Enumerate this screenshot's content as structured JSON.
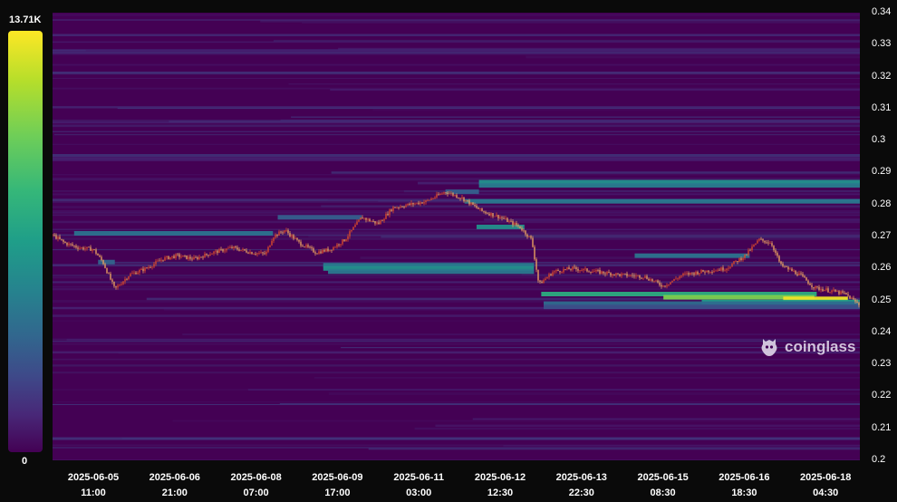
{
  "legend": {
    "max_label": "13.71K",
    "min_label": "0"
  },
  "watermark": {
    "text": "coinglass"
  },
  "chart_data": {
    "type": "heatmap",
    "colormap": [
      "#440154",
      "#482878",
      "#3e4989",
      "#31688e",
      "#26828e",
      "#1f9e89",
      "#35b779",
      "#6ece58",
      "#b5de2b",
      "#fde725"
    ],
    "value_range": [
      0,
      13710
    ],
    "ylim": [
      0.2,
      0.34
    ],
    "yticks": [
      "0.34",
      "0.33",
      "0.32",
      "0.31",
      "0.3",
      "0.29",
      "0.28",
      "0.27",
      "0.26",
      "0.25",
      "0.24",
      "0.23",
      "0.22",
      "0.21",
      "0.2"
    ],
    "xticks": [
      {
        "date": "2025-06-05",
        "time": "11:00"
      },
      {
        "date": "2025-06-06",
        "time": "21:00"
      },
      {
        "date": "2025-06-08",
        "time": "07:00"
      },
      {
        "date": "2025-06-09",
        "time": "17:00"
      },
      {
        "date": "2025-06-11",
        "time": "03:00"
      },
      {
        "date": "2025-06-12",
        "time": "12:30"
      },
      {
        "date": "2025-06-13",
        "time": "22:30"
      },
      {
        "date": "2025-06-15",
        "time": "08:30"
      },
      {
        "date": "2025-06-16",
        "time": "18:30"
      },
      {
        "date": "2025-06-18",
        "time": "04:30"
      }
    ],
    "xrange": [
      "2025-06-04T17:00",
      "2025-06-18T18:00"
    ],
    "price_series": [
      [
        "2025-06-04T17:00",
        0.2705
      ],
      [
        "2025-06-04T22:00",
        0.268
      ],
      [
        "2025-06-05T04:00",
        0.2665
      ],
      [
        "2025-06-05T10:00",
        0.266
      ],
      [
        "2025-06-05T14:00",
        0.262
      ],
      [
        "2025-06-05T19:00",
        0.2535
      ],
      [
        "2025-06-06T01:00",
        0.258
      ],
      [
        "2025-06-06T08:00",
        0.26
      ],
      [
        "2025-06-06T15:00",
        0.263
      ],
      [
        "2025-06-06T21:00",
        0.264
      ],
      [
        "2025-06-07T04:00",
        0.263
      ],
      [
        "2025-06-07T12:00",
        0.265
      ],
      [
        "2025-06-07T20:00",
        0.2665
      ],
      [
        "2025-06-08T04:00",
        0.265
      ],
      [
        "2025-06-08T10:00",
        0.2645
      ],
      [
        "2025-06-08T13:00",
        0.27
      ],
      [
        "2025-06-08T18:00",
        0.272
      ],
      [
        "2025-06-09T00:00",
        0.268
      ],
      [
        "2025-06-09T07:00",
        0.265
      ],
      [
        "2025-06-09T13:00",
        0.266
      ],
      [
        "2025-06-09T19:00",
        0.269
      ],
      [
        "2025-06-10T02:00",
        0.276
      ],
      [
        "2025-06-10T09:00",
        0.274
      ],
      [
        "2025-06-10T15:00",
        0.279
      ],
      [
        "2025-06-10T22:00",
        0.28
      ],
      [
        "2025-06-11T05:00",
        0.281
      ],
      [
        "2025-06-11T13:00",
        0.284
      ],
      [
        "2025-06-11T20:00",
        0.282
      ],
      [
        "2025-06-12T04:00",
        0.278
      ],
      [
        "2025-06-12T12:00",
        0.276
      ],
      [
        "2025-06-12T20:00",
        0.273
      ],
      [
        "2025-06-13T01:00",
        0.269
      ],
      [
        "2025-06-13T04:00",
        0.255
      ],
      [
        "2025-06-13T10:00",
        0.259
      ],
      [
        "2025-06-13T18:00",
        0.26
      ],
      [
        "2025-06-14T04:00",
        0.259
      ],
      [
        "2025-06-14T14:00",
        0.258
      ],
      [
        "2025-06-15T00:00",
        0.2575
      ],
      [
        "2025-06-15T08:00",
        0.2545
      ],
      [
        "2025-06-15T16:00",
        0.258
      ],
      [
        "2025-06-16T00:00",
        0.259
      ],
      [
        "2025-06-16T10:00",
        0.26
      ],
      [
        "2025-06-16T18:00",
        0.264
      ],
      [
        "2025-06-17T00:00",
        0.269
      ],
      [
        "2025-06-17T05:00",
        0.268
      ],
      [
        "2025-06-17T09:00",
        0.261
      ],
      [
        "2025-06-17T17:00",
        0.258
      ],
      [
        "2025-06-17T23:00",
        0.254
      ],
      [
        "2025-06-18T06:00",
        0.253
      ],
      [
        "2025-06-18T12:00",
        0.252
      ],
      [
        "2025-06-18T18:00",
        0.2485
      ]
    ],
    "liquidity_bands": [
      {
        "price": 0.287,
        "from": "2025-06-12T03:00",
        "to": "2025-06-18T18:00",
        "intensity": 0.5
      },
      {
        "price": 0.286,
        "from": "2025-06-12T03:00",
        "to": "2025-06-18T18:00",
        "intensity": 0.42
      },
      {
        "price": 0.281,
        "from": "2025-06-11T21:00",
        "to": "2025-06-18T18:00",
        "intensity": 0.4
      },
      {
        "price": 0.284,
        "from": "2025-06-11T13:00",
        "to": "2025-06-12T03:00",
        "intensity": 0.3
      },
      {
        "price": 0.273,
        "from": "2025-06-12T02:00",
        "to": "2025-06-12T22:00",
        "intensity": 0.5
      },
      {
        "price": 0.271,
        "from": "2025-06-05T02:00",
        "to": "2025-06-08T13:00",
        "intensity": 0.38
      },
      {
        "price": 0.276,
        "from": "2025-06-08T15:00",
        "to": "2025-06-10T02:00",
        "intensity": 0.3
      },
      {
        "price": 0.264,
        "from": "2025-06-14T20:00",
        "to": "2025-06-16T20:00",
        "intensity": 0.38
      },
      {
        "price": 0.262,
        "from": "2025-06-05T12:00",
        "to": "2025-06-05T19:00",
        "intensity": 0.32
      },
      {
        "price": 0.261,
        "from": "2025-06-09T10:00",
        "to": "2025-06-13T02:00",
        "intensity": 0.42
      },
      {
        "price": 0.26,
        "from": "2025-06-09T10:00",
        "to": "2025-06-13T02:00",
        "intensity": 0.5
      },
      {
        "price": 0.259,
        "from": "2025-06-09T12:00",
        "to": "2025-06-13T02:00",
        "intensity": 0.4
      },
      {
        "price": 0.252,
        "from": "2025-06-13T05:00",
        "to": "2025-06-18T00:00",
        "intensity": 0.62
      },
      {
        "price": 0.251,
        "from": "2025-06-15T08:00",
        "to": "2025-06-17T23:00",
        "intensity": 0.8
      },
      {
        "price": 0.2505,
        "from": "2025-06-17T10:00",
        "to": "2025-06-18T13:00",
        "intensity": 0.98
      },
      {
        "price": 0.2495,
        "from": "2025-06-16T00:00",
        "to": "2025-06-18T18:00",
        "intensity": 0.55
      },
      {
        "price": 0.249,
        "from": "2025-06-13T06:00",
        "to": "2025-06-18T18:00",
        "intensity": 0.35
      },
      {
        "price": 0.248,
        "from": "2025-06-13T06:00",
        "to": "2025-06-18T18:00",
        "intensity": 0.25
      }
    ]
  }
}
